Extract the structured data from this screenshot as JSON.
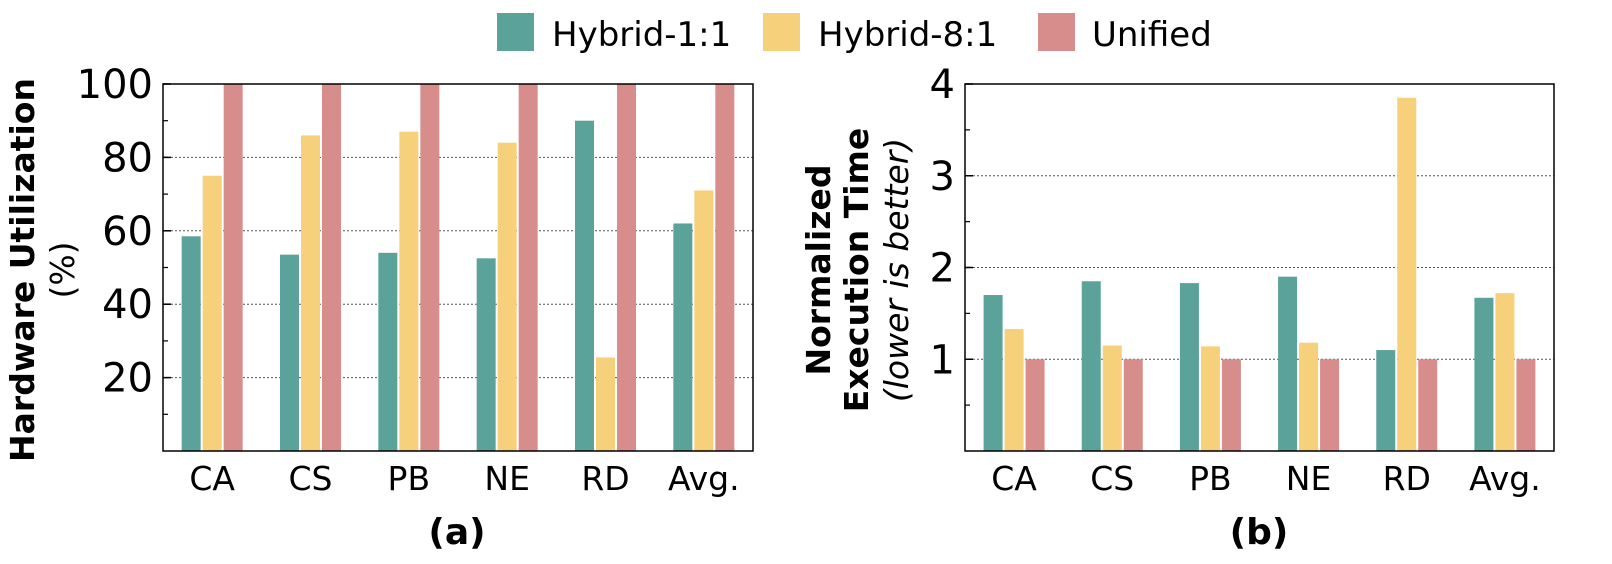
{
  "legend": [
    {
      "name": "Hybrid-1:1",
      "color": "#5ba39a"
    },
    {
      "name": "Hybrid-8:1",
      "color": "#f6d07a"
    },
    {
      "name": "Unified",
      "color": "#d78d8c"
    }
  ],
  "chart_data": [
    {
      "type": "bar",
      "panel_label": "(a)",
      "ylabel": "Hardware Utilization",
      "ylabel_unit": "(%)",
      "categories": [
        "CA",
        "CS",
        "PB",
        "NE",
        "RD",
        "Avg."
      ],
      "yticks": [
        "20",
        "40",
        "60",
        "80",
        "100"
      ],
      "ylim": [
        0,
        100
      ],
      "grid": true,
      "series": [
        {
          "name": "Hybrid-1:1",
          "values": [
            58.5,
            53.5,
            54,
            52.5,
            90,
            62
          ]
        },
        {
          "name": "Hybrid-8:1",
          "values": [
            75,
            86,
            87,
            84,
            25.5,
            71
          ]
        },
        {
          "name": "Unified",
          "values": [
            100,
            100,
            100,
            100,
            100,
            100
          ]
        }
      ]
    },
    {
      "type": "bar",
      "panel_label": "(b)",
      "ylabel_line1": "Normalized",
      "ylabel_line2": "Execution Time",
      "ylabel_note": "(lower is better)",
      "categories": [
        "CA",
        "CS",
        "PB",
        "NE",
        "RD",
        "Avg."
      ],
      "yticks": [
        "1",
        "2",
        "3",
        "4"
      ],
      "ylim": [
        0,
        4
      ],
      "grid": true,
      "series": [
        {
          "name": "Hybrid-1:1",
          "values": [
            1.7,
            1.85,
            1.83,
            1.9,
            1.1,
            1.67
          ]
        },
        {
          "name": "Hybrid-8:1",
          "values": [
            1.33,
            1.15,
            1.14,
            1.18,
            3.85,
            1.72
          ]
        },
        {
          "name": "Unified",
          "values": [
            1,
            1,
            1,
            1,
            1,
            1
          ]
        }
      ]
    }
  ]
}
